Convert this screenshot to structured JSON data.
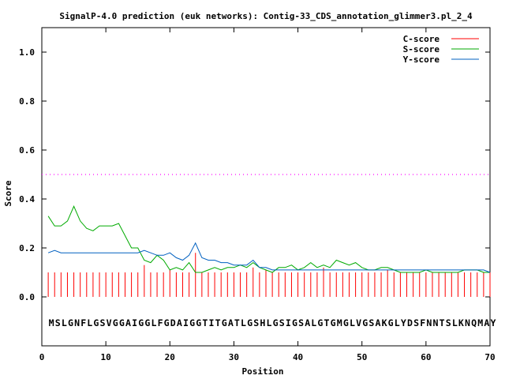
{
  "chart_data": {
    "type": "line",
    "title": "SignalP-4.0 prediction (euk networks): Contig-33_CDS_annotation_glimmer3.pl_2_4",
    "xlabel": "Position",
    "ylabel": "Score",
    "xlim": [
      0,
      70
    ],
    "ylim": [
      -0.2,
      1.1
    ],
    "x_ticks": [
      0,
      10,
      20,
      30,
      40,
      50,
      60,
      70
    ],
    "x_tick_labels": [
      "0",
      "10",
      "20",
      "30",
      "40",
      "50",
      "60",
      "70"
    ],
    "y_ticks": [
      0.0,
      0.2,
      0.4,
      0.6,
      0.8,
      1.0
    ],
    "y_tick_labels": [
      "0.0",
      "0.2",
      "0.4",
      "0.6",
      "0.8",
      "1.0"
    ],
    "grid": false,
    "legend_position": "top-right",
    "threshold": 0.5,
    "threshold_color": "#ff00ff",
    "sequence": "MSLGNFLGSVGGAIGGLFGDAIGGTITGATLGSHLGSIGSALGTGMGLVGSAKGLYDSFNNTSLKNQMAY",
    "x": [
      1,
      2,
      3,
      4,
      5,
      6,
      7,
      8,
      9,
      10,
      11,
      12,
      13,
      14,
      15,
      16,
      17,
      18,
      19,
      20,
      21,
      22,
      23,
      24,
      25,
      26,
      27,
      28,
      29,
      30,
      31,
      32,
      33,
      34,
      35,
      36,
      37,
      38,
      39,
      40,
      41,
      42,
      43,
      44,
      45,
      46,
      47,
      48,
      49,
      50,
      51,
      52,
      53,
      54,
      55,
      56,
      57,
      58,
      59,
      60,
      61,
      62,
      63,
      64,
      65,
      66,
      67,
      68,
      69,
      70
    ],
    "series": [
      {
        "name": "C-score",
        "style": "impulses",
        "color": "#ff0000",
        "values": [
          0.1,
          0.1,
          0.1,
          0.1,
          0.1,
          0.1,
          0.1,
          0.1,
          0.1,
          0.1,
          0.1,
          0.1,
          0.1,
          0.1,
          0.1,
          0.13,
          0.1,
          0.1,
          0.1,
          0.11,
          0.1,
          0.1,
          0.1,
          0.18,
          0.1,
          0.1,
          0.1,
          0.1,
          0.1,
          0.1,
          0.1,
          0.1,
          0.12,
          0.1,
          0.11,
          0.1,
          0.1,
          0.1,
          0.1,
          0.1,
          0.1,
          0.1,
          0.1,
          0.12,
          0.1,
          0.1,
          0.1,
          0.1,
          0.1,
          0.1,
          0.1,
          0.1,
          0.1,
          0.11,
          0.1,
          0.1,
          0.1,
          0.1,
          0.1,
          0.1,
          0.1,
          0.1,
          0.1,
          0.1,
          0.1,
          0.1,
          0.1,
          0.1,
          0.1,
          0.1
        ]
      },
      {
        "name": "S-score",
        "style": "line",
        "color": "#00aa00",
        "values": [
          0.33,
          0.29,
          0.29,
          0.31,
          0.37,
          0.31,
          0.28,
          0.27,
          0.29,
          0.29,
          0.29,
          0.3,
          0.25,
          0.2,
          0.2,
          0.15,
          0.14,
          0.17,
          0.15,
          0.11,
          0.12,
          0.11,
          0.14,
          0.1,
          0.1,
          0.11,
          0.12,
          0.11,
          0.12,
          0.12,
          0.13,
          0.12,
          0.14,
          0.12,
          0.11,
          0.1,
          0.12,
          0.12,
          0.13,
          0.11,
          0.12,
          0.14,
          0.12,
          0.13,
          0.12,
          0.15,
          0.14,
          0.13,
          0.14,
          0.12,
          0.11,
          0.11,
          0.12,
          0.12,
          0.11,
          0.1,
          0.1,
          0.1,
          0.1,
          0.11,
          0.1,
          0.1,
          0.1,
          0.1,
          0.1,
          0.11,
          0.11,
          0.11,
          0.1,
          0.1
        ]
      },
      {
        "name": "Y-score",
        "style": "line",
        "color": "#0060c0",
        "values": [
          0.18,
          0.19,
          0.18,
          0.18,
          0.18,
          0.18,
          0.18,
          0.18,
          0.18,
          0.18,
          0.18,
          0.18,
          0.18,
          0.18,
          0.18,
          0.19,
          0.18,
          0.17,
          0.17,
          0.18,
          0.16,
          0.15,
          0.17,
          0.22,
          0.16,
          0.15,
          0.15,
          0.14,
          0.14,
          0.13,
          0.13,
          0.13,
          0.15,
          0.12,
          0.12,
          0.11,
          0.11,
          0.11,
          0.11,
          0.11,
          0.11,
          0.11,
          0.11,
          0.11,
          0.11,
          0.11,
          0.11,
          0.11,
          0.11,
          0.11,
          0.11,
          0.11,
          0.11,
          0.11,
          0.11,
          0.11,
          0.11,
          0.11,
          0.11,
          0.11,
          0.11,
          0.11,
          0.11,
          0.11,
          0.11,
          0.11,
          0.11,
          0.11,
          0.11,
          0.1
        ]
      }
    ]
  }
}
